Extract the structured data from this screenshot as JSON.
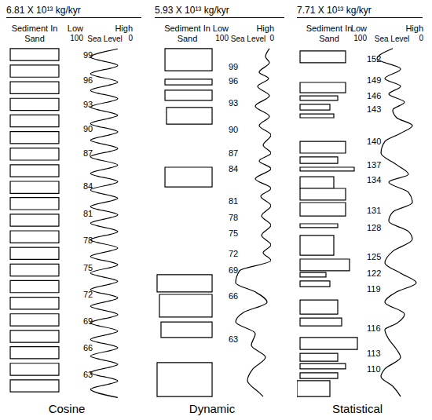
{
  "chart_data": [
    {
      "type": "sediment_sea_level",
      "title": "6.81 X 10¹³ kg/kyr",
      "label": "Cosine",
      "ylim": [
        0,
        100
      ],
      "sediment": {
        "label": "Sediment In Sand",
        "xlim": [
          0,
          100
        ],
        "intervals": [
          {
            "top": 0.4,
            "bottom": 3.8,
            "from": 7,
            "to": 93
          },
          {
            "top": 5.1,
            "bottom": 8.5,
            "from": 7,
            "to": 93
          },
          {
            "top": 9.8,
            "bottom": 13.2,
            "from": 7,
            "to": 93
          },
          {
            "top": 14.5,
            "bottom": 17.9,
            "from": 7,
            "to": 93
          },
          {
            "top": 19.2,
            "bottom": 22.6,
            "from": 7,
            "to": 93
          },
          {
            "top": 23.9,
            "bottom": 27.3,
            "from": 7,
            "to": 93
          },
          {
            "top": 28.6,
            "bottom": 32.0,
            "from": 7,
            "to": 93
          },
          {
            "top": 33.3,
            "bottom": 36.7,
            "from": 7,
            "to": 93
          },
          {
            "top": 38.0,
            "bottom": 41.4,
            "from": 7,
            "to": 93
          },
          {
            "top": 42.6,
            "bottom": 46.0,
            "from": 7,
            "to": 93
          },
          {
            "top": 47.3,
            "bottom": 50.7,
            "from": 7,
            "to": 93
          },
          {
            "top": 52.0,
            "bottom": 55.4,
            "from": 7,
            "to": 93
          },
          {
            "top": 56.7,
            "bottom": 60.1,
            "from": 7,
            "to": 93
          },
          {
            "top": 61.4,
            "bottom": 64.8,
            "from": 7,
            "to": 93
          },
          {
            "top": 66.1,
            "bottom": 69.5,
            "from": 7,
            "to": 93
          },
          {
            "top": 70.8,
            "bottom": 74.2,
            "from": 7,
            "to": 93
          },
          {
            "top": 75.5,
            "bottom": 78.9,
            "from": 7,
            "to": 93
          },
          {
            "top": 80.2,
            "bottom": 83.6,
            "from": 7,
            "to": 93
          },
          {
            "top": 84.8,
            "bottom": 88.2,
            "from": 7,
            "to": 93
          },
          {
            "top": 89.5,
            "bottom": 92.9,
            "from": 7,
            "to": 93
          },
          {
            "top": 94.2,
            "bottom": 97.6,
            "from": 7,
            "to": 93
          }
        ]
      },
      "sea_level": {
        "label": "Sea Level",
        "low_label": "Low",
        "high_label": "High",
        "xlim": [
          100,
          0
        ],
        "xticks": [
          100,
          0
        ],
        "x": [
          24,
          79,
          24,
          79,
          24,
          79,
          24,
          79,
          24,
          79,
          24,
          79,
          24,
          79,
          24,
          79,
          24,
          79,
          24,
          79,
          24,
          79,
          24,
          79,
          24,
          79,
          24,
          79,
          24,
          79,
          24,
          79,
          24,
          79,
          24,
          79,
          24,
          79,
          24,
          79,
          24,
          79,
          24
        ],
        "y": [
          0.5,
          2.85,
          5.2,
          7.55,
          9.9,
          12.25,
          14.6,
          16.95,
          19.3,
          21.65,
          24.0,
          26.35,
          28.7,
          31.05,
          33.4,
          35.75,
          38.1,
          40.45,
          42.8,
          45.15,
          47.5,
          49.85,
          52.2,
          54.55,
          56.9,
          59.25,
          61.6,
          63.95,
          66.3,
          68.65,
          71.0,
          73.35,
          75.7,
          78.05,
          80.4,
          82.75,
          85.1,
          87.45,
          89.8,
          92.15,
          94.5,
          96.85,
          99.2
        ]
      },
      "markers": [
        {
          "label": "99",
          "y": 2.2
        },
        {
          "label": "96",
          "y": 9.3
        },
        {
          "label": "93",
          "y": 16.2
        },
        {
          "label": "90",
          "y": 23.1
        },
        {
          "label": "87",
          "y": 30.0
        },
        {
          "label": "84",
          "y": 39.3
        },
        {
          "label": "81",
          "y": 47.1
        },
        {
          "label": "78",
          "y": 54.7
        },
        {
          "label": "75",
          "y": 62.4
        },
        {
          "label": "72",
          "y": 70.0
        },
        {
          "label": "69",
          "y": 77.6
        },
        {
          "label": "66",
          "y": 85.1
        },
        {
          "label": "63",
          "y": 92.7
        }
      ]
    },
    {
      "type": "sediment_sea_level",
      "title": "5.93 X 10¹³ kg/kyr",
      "label": "Dynamic",
      "ylim": [
        0,
        100
      ],
      "sediment": {
        "label": "Sediment In Sand",
        "xlim": [
          0,
          100
        ],
        "intervals": [
          {
            "top": 0.4,
            "bottom": 6.7,
            "from": 15.7,
            "to": 88
          },
          {
            "top": 9.1,
            "bottom": 10.7,
            "from": 15.7,
            "to": 88
          },
          {
            "top": 12.2,
            "bottom": 15.1,
            "from": 15.7,
            "to": 88
          },
          {
            "top": 17.1,
            "bottom": 21.8,
            "from": 18,
            "to": 88
          },
          {
            "top": 34.0,
            "bottom": 39.6,
            "from": 15.7,
            "to": 88
          },
          {
            "top": 64.4,
            "bottom": 69.3,
            "from": 3.6,
            "to": 88
          },
          {
            "top": 70.0,
            "bottom": 76.4,
            "from": 7.2,
            "to": 88
          },
          {
            "top": 77.8,
            "bottom": 82.2,
            "from": 9.6,
            "to": 88
          },
          {
            "top": 89.3,
            "bottom": 98.9,
            "from": 3.6,
            "to": 88
          }
        ]
      },
      "sea_level": {
        "label": "Sea Level",
        "low_label": "Low",
        "high_label": "High",
        "xlim": [
          100,
          0
        ],
        "xticks": [
          100,
          0
        ],
        "x": [
          3.4,
          12.1,
          3.4,
          25.9,
          5.2,
          29.3,
          3.4,
          34.5,
          3.4,
          25.9,
          0,
          17.2,
          0,
          25.9,
          0,
          34.5,
          0,
          22.4,
          0,
          20.7,
          0,
          20.7,
          0,
          17.2,
          0,
          69.0,
          77.6,
          34.5,
          8.6,
          60.3,
          77.6,
          34.5,
          43.1,
          12.1,
          39.7,
          51.7,
          25.9,
          17.2
        ],
        "y": [
          0.4,
          2.7,
          4.4,
          7.1,
          8.9,
          11.1,
          13.8,
          16.7,
          19.6,
          22.2,
          24.9,
          27.8,
          30.0,
          32.2,
          34.4,
          37.3,
          40.0,
          42.2,
          44.9,
          47.8,
          50.4,
          53.3,
          56.0,
          58.2,
          60.4,
          63.3,
          66.7,
          69.3,
          72.2,
          75.1,
          77.8,
          81.1,
          84.4,
          87.8,
          91.1,
          94.4,
          97.8,
          98.9
        ]
      },
      "markers": [
        {
          "label": "99",
          "y": 5.6
        },
        {
          "label": "96",
          "y": 9.6
        },
        {
          "label": "93",
          "y": 15.8
        },
        {
          "label": "90",
          "y": 23.3
        },
        {
          "label": "87",
          "y": 30.0
        },
        {
          "label": "84",
          "y": 34.4
        },
        {
          "label": "81",
          "y": 43.6
        },
        {
          "label": "78",
          "y": 48.2
        },
        {
          "label": "75",
          "y": 52.7
        },
        {
          "label": "72",
          "y": 58.4
        },
        {
          "label": "69",
          "y": 63.1
        },
        {
          "label": "66",
          "y": 70.4
        },
        {
          "label": "63",
          "y": 82.7
        }
      ]
    },
    {
      "type": "sediment_sea_level",
      "title": "7.71 X 10¹³ kg/kyr",
      "label": "Statistical",
      "ylim": [
        0,
        100
      ],
      "sediment": {
        "label": "Sediment In Sand",
        "xlim": [
          0,
          100
        ],
        "intervals": [
          {
            "top": 1.1,
            "bottom": 4.4,
            "from": 4.9,
            "to": 75.6
          },
          {
            "top": 10.0,
            "bottom": 12.9,
            "from": 4.9,
            "to": 75.6
          },
          {
            "top": 13.8,
            "bottom": 15.1,
            "from": 4.9,
            "to": 63.4
          },
          {
            "top": 16.2,
            "bottom": 17.8,
            "from": 4.9,
            "to": 51.2
          },
          {
            "top": 18.9,
            "bottom": 20.0,
            "from": 4.9,
            "to": 57.3
          },
          {
            "top": 26.7,
            "bottom": 30.0,
            "from": 4.9,
            "to": 75.6
          },
          {
            "top": 31.1,
            "bottom": 32.9,
            "from": 4.9,
            "to": 63.4
          },
          {
            "top": 34.0,
            "bottom": 35.1,
            "from": 4.9,
            "to": 89.0
          },
          {
            "top": 36.7,
            "bottom": 40.0,
            "from": 4.9,
            "to": 57.3
          },
          {
            "top": 40.0,
            "bottom": 43.3,
            "from": 4.9,
            "to": 75.6
          },
          {
            "top": 44.0,
            "bottom": 47.8,
            "from": 4.9,
            "to": 75.6
          },
          {
            "top": 50.0,
            "bottom": 51.1,
            "from": 4.9,
            "to": 63.4
          },
          {
            "top": 53.3,
            "bottom": 58.9,
            "from": 4.9,
            "to": 57.3
          },
          {
            "top": 60.0,
            "bottom": 63.3,
            "from": 4.9,
            "to": 81.7
          },
          {
            "top": 63.8,
            "bottom": 65.1,
            "from": 4.9,
            "to": 45.1
          },
          {
            "top": 66.2,
            "bottom": 67.8,
            "from": 4.9,
            "to": 51.2
          },
          {
            "top": 71.6,
            "bottom": 75.6,
            "from": 4.9,
            "to": 63.4
          },
          {
            "top": 76.7,
            "bottom": 78.9,
            "from": 4.9,
            "to": 69.5
          },
          {
            "top": 82.2,
            "bottom": 85.6,
            "from": 4.9,
            "to": 93.9
          },
          {
            "top": 86.7,
            "bottom": 88.9,
            "from": 4.9,
            "to": 63.4
          },
          {
            "top": 89.6,
            "bottom": 91.1,
            "from": 4.9,
            "to": 75.6
          },
          {
            "top": 92.2,
            "bottom": 93.8,
            "from": 4.9,
            "to": 63.4
          },
          {
            "top": 94.4,
            "bottom": 98.9,
            "from": 0,
            "to": 51.2
          }
        ]
      },
      "sea_level": {
        "label": "Sea Level",
        "low_label": "Low",
        "high_label": "High",
        "xlim": [
          100,
          0
        ],
        "xticks": [
          100,
          0
        ],
        "x": [
          48.6,
          76.4,
          34.7,
          62.5,
          34.7,
          55.6,
          27.8,
          48.6,
          41.7,
          13.9,
          34.7,
          62.5,
          69.4,
          41.7,
          20.8,
          55.6,
          20.8,
          13.9,
          48.6,
          55.6,
          20.8,
          13.9,
          48.6,
          62.5,
          34.7,
          6.9,
          41.7,
          62.5,
          27.8,
          41.7,
          62.5,
          55.6,
          41.7,
          34.7,
          62.5,
          69.4,
          48.6,
          34.7
        ],
        "y": [
          0.4,
          3.3,
          6.2,
          8.9,
          11.1,
          13.3,
          15.6,
          17.8,
          20.0,
          22.2,
          24.4,
          26.7,
          30.0,
          33.3,
          36.0,
          38.2,
          41.1,
          44.0,
          46.7,
          49.3,
          52.2,
          54.4,
          57.8,
          61.1,
          64.0,
          66.7,
          69.3,
          72.2,
          75.6,
          78.2,
          80.0,
          82.7,
          85.6,
          87.8,
          91.1,
          93.3,
          96.0,
          98.9
        ]
      },
      "markers": [
        {
          "label": "152",
          "y": 3.3
        },
        {
          "label": "149",
          "y": 9.3
        },
        {
          "label": "146",
          "y": 13.8
        },
        {
          "label": "143",
          "y": 17.6
        },
        {
          "label": "140",
          "y": 26.7
        },
        {
          "label": "137",
          "y": 33.3
        },
        {
          "label": "134",
          "y": 37.6
        },
        {
          "label": "131",
          "y": 46.2
        },
        {
          "label": "128",
          "y": 51.1
        },
        {
          "label": "125",
          "y": 59.3
        },
        {
          "label": "122",
          "y": 64.0
        },
        {
          "label": "119",
          "y": 68.4
        },
        {
          "label": "116",
          "y": 79.6
        },
        {
          "label": "113",
          "y": 86.7
        },
        {
          "label": "110",
          "y": 91.1
        }
      ]
    }
  ]
}
